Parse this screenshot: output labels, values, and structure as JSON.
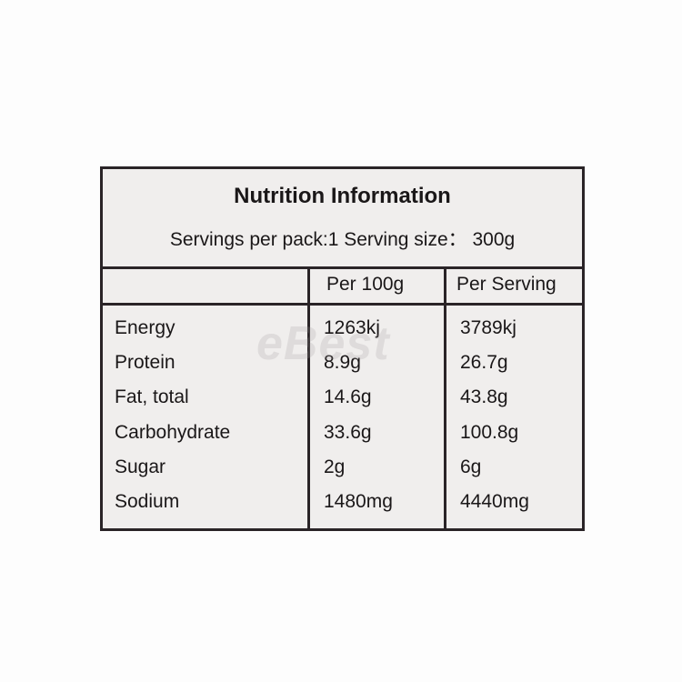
{
  "title": "Nutrition Information",
  "servings_line": "Servings per pack:1  Serving size： 300g",
  "columns": [
    "",
    "Per 100g",
    "Per Serving"
  ],
  "rows": [
    {
      "nutrient": "Energy",
      "per_100g": "1263kj",
      "per_serving": "3789kj"
    },
    {
      "nutrient": "Protein",
      "per_100g": "8.9g",
      "per_serving": "26.7g"
    },
    {
      "nutrient": "Fat, total",
      "per_100g": "14.6g",
      "per_serving": "43.8g"
    },
    {
      "nutrient": "Carbohydrate",
      "per_100g": "33.6g",
      "per_serving": "100.8g"
    },
    {
      "nutrient": "Sugar",
      "per_100g": "2g",
      "per_serving": "6g"
    },
    {
      "nutrient": "Sodium",
      "per_100g": "1480mg",
      "per_serving": "4440mg"
    }
  ],
  "watermark": "eBest"
}
